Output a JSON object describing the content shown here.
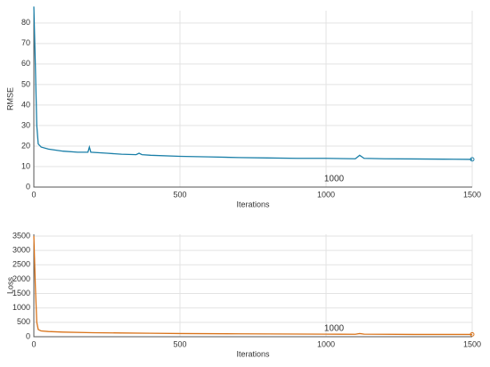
{
  "chart_data": [
    {
      "type": "line",
      "ylabel": "RMSE",
      "xlabel": "Iterations",
      "annotation": "1000",
      "x": [
        0,
        5,
        10,
        15,
        25,
        50,
        100,
        150,
        185,
        190,
        195,
        250,
        300,
        350,
        360,
        370,
        400,
        500,
        600,
        700,
        800,
        900,
        1000,
        1100,
        1115,
        1130,
        1200,
        1300,
        1400,
        1500
      ],
      "series": [
        {
          "name": "RMSE",
          "color": "#1a7fa8",
          "values": [
            88,
            60,
            30,
            21,
            19.5,
            18.5,
            17.5,
            17,
            17,
            19.5,
            17,
            16.5,
            16,
            15.8,
            16.5,
            15.8,
            15.5,
            15,
            14.7,
            14.4,
            14.2,
            14,
            14,
            13.8,
            15.5,
            14,
            13.8,
            13.7,
            13.6,
            13.5
          ]
        }
      ],
      "xlim": [
        0,
        1500
      ],
      "xticks": [
        0,
        500,
        1000,
        1500
      ],
      "ylim": [
        0,
        86
      ],
      "yticks": [
        0,
        10,
        20,
        30,
        40,
        50,
        60,
        70,
        80
      ],
      "grid": true
    },
    {
      "type": "line",
      "ylabel": "Loss",
      "xlabel": "Iterations",
      "annotation": "1000",
      "x": [
        0,
        5,
        10,
        15,
        25,
        50,
        100,
        200,
        300,
        400,
        500,
        700,
        1000,
        1100,
        1115,
        1130,
        1300,
        1500
      ],
      "series": [
        {
          "name": "Loss",
          "color": "#d9731a",
          "values": [
            3500,
            1800,
            500,
            250,
            200,
            180,
            160,
            140,
            130,
            120,
            110,
            100,
            90,
            85,
            110,
            88,
            80,
            80
          ]
        }
      ],
      "xlim": [
        0,
        1500
      ],
      "xticks": [
        0,
        500,
        1000,
        1500
      ],
      "ylim": [
        0,
        3560
      ],
      "yticks": [
        0,
        500,
        1000,
        1500,
        2000,
        2500,
        3000,
        3500
      ],
      "grid": true
    }
  ]
}
